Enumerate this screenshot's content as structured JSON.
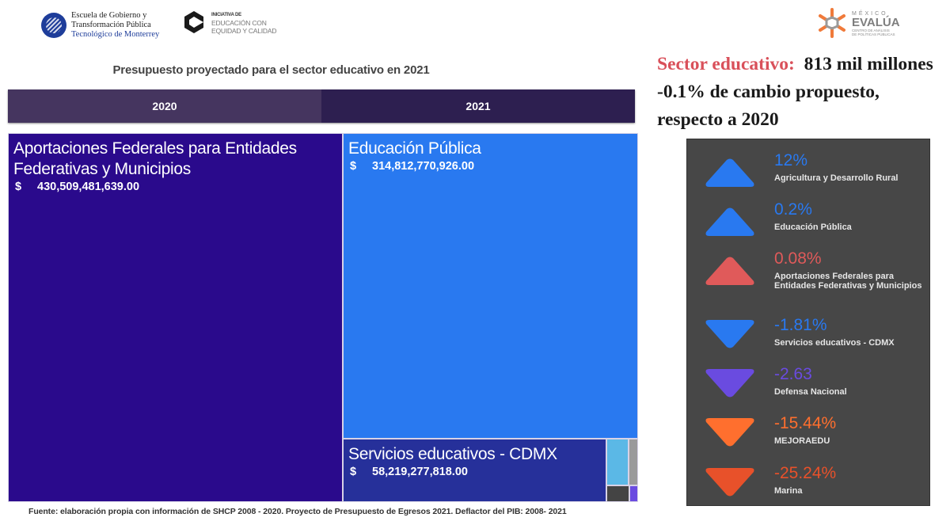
{
  "logos": {
    "tec": {
      "line1": "Escuela de Gobierno y",
      "line2": "Transformación Pública",
      "line3": "Tecnológico de Monterrey"
    },
    "eec": {
      "line1": "INICIATIVA DE",
      "line2": "EDUCACIÓN CON",
      "line3": "EQUIDAD Y CALIDAD"
    },
    "mexico_evalua": {
      "line1": "MÉXICO",
      "line2": "EVALÚA",
      "line3": "CENTRO DE ANÁLISIS",
      "line4": "DE POLÍTICAS PÚBLICAS"
    }
  },
  "headline": {
    "label": "Sector educativo:",
    "amount": "813 mil millones",
    "line2": "-0.1% de cambio propuesto,",
    "line3": "respecto a 2020"
  },
  "tabs": [
    {
      "label": "2020",
      "active": true
    },
    {
      "label": "2021",
      "active": false
    }
  ],
  "footer": "Fuente: elaboración propia con información de  SHCP 2008 - 2020. Proyecto de Presupuesto de Egresos 2021. Deflactor del PIB:  2008- 2021",
  "chart_data": {
    "type": "treemap",
    "title": "Presupuesto proyectado para el sector educativo en  2021",
    "currency_symbol": "$",
    "nodes": [
      {
        "name": "Aportaciones Federales para Entidades Federativas y Municipios",
        "value": 430509481639.0,
        "value_label": "430,509,481,639.00",
        "color": "#2a0a8c",
        "show_label": true
      },
      {
        "name": "Educación Pública",
        "value": 314812770926.0,
        "value_label": "314,812,770,926.00",
        "color": "#2979f0",
        "show_label": true
      },
      {
        "name": "Servicios educativos - CDMX",
        "value": 58219277818.0,
        "value_label": "58,219,277,818.00",
        "color": "#26309a",
        "show_label": true
      },
      {
        "name": "small-1",
        "value": 3600000000,
        "color": "#5bb8e6",
        "show_label": false
      },
      {
        "name": "small-2",
        "value": 1600000000,
        "color": "#9a9a9a",
        "show_label": false
      },
      {
        "name": "small-3",
        "value": 1300000000,
        "color": "#444444",
        "show_label": false
      },
      {
        "name": "small-4",
        "value": 500000000,
        "color": "#6a4be0",
        "show_label": false
      }
    ]
  },
  "kpis": [
    {
      "value": "12%",
      "name": "Agricultura y Desarrollo Rural",
      "direction": "up",
      "color": "#2979f0"
    },
    {
      "value": "0.2%",
      "name": "Educación Pública",
      "direction": "up",
      "color": "#2979f0"
    },
    {
      "value": "0.08%",
      "name": "Aportaciones Federales para Entidades Federativas y Municipios",
      "direction": "up",
      "color": "#e05a5a"
    },
    {
      "value": "-1.81%",
      "name": "Servicios educativos - CDMX",
      "direction": "down",
      "color": "#2979f0"
    },
    {
      "value": "-2.63",
      "name": "Defensa Nacional",
      "direction": "down",
      "color": "#6a4be0"
    },
    {
      "value": "-15.44%",
      "name": "MEJORAEDU",
      "direction": "down",
      "color": "#ff6f2e"
    },
    {
      "value": "-25.24%",
      "name": "Marina",
      "direction": "down",
      "color": "#e8512a"
    }
  ]
}
